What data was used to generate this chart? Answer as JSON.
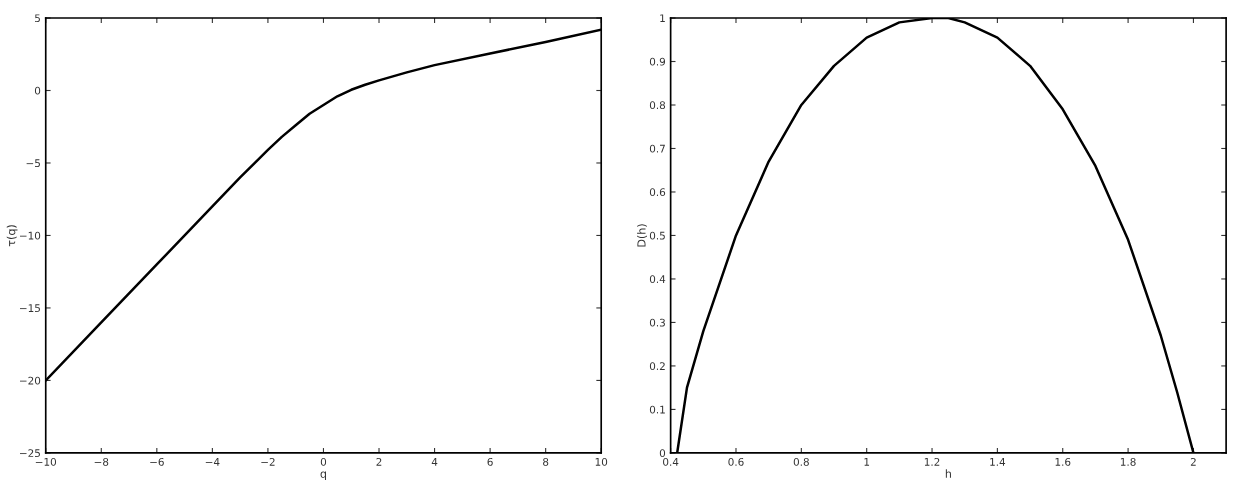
{
  "chart_data": [
    {
      "type": "line",
      "xlabel": "q",
      "ylabel": "τ(q)",
      "xlim": [
        -10,
        10
      ],
      "ylim": [
        -25,
        5
      ],
      "xticks": [
        -10,
        -8,
        -6,
        -4,
        -2,
        0,
        2,
        4,
        6,
        8,
        10
      ],
      "yticks": [
        -25,
        -20,
        -15,
        -10,
        -5,
        0,
        5
      ],
      "grid": false,
      "legend": false,
      "marker": "none",
      "line_style": "solid",
      "series": [
        {
          "color": "#000000",
          "x": [
            -10,
            -8,
            -6,
            -4,
            -3,
            -2,
            -1.5,
            -1,
            -0.5,
            0,
            0.5,
            1,
            1.5,
            2,
            3,
            4,
            6,
            8,
            10
          ],
          "values": [
            -20,
            -16,
            -12,
            -8,
            -6,
            -4.1,
            -3.2,
            -2.4,
            -1.6,
            -1.0,
            -0.4,
            0.05,
            0.4,
            0.7,
            1.25,
            1.75,
            2.55,
            3.35,
            4.2
          ]
        }
      ]
    },
    {
      "type": "line",
      "xlabel": "h",
      "ylabel": "D(h)",
      "xlim": [
        0.4,
        2.1
      ],
      "ylim": [
        0,
        1
      ],
      "xticks": [
        0.4,
        0.6,
        0.8,
        1,
        1.2,
        1.4,
        1.6,
        1.8,
        2
      ],
      "yticks": [
        0,
        0.1,
        0.2,
        0.3,
        0.4,
        0.5,
        0.6,
        0.7,
        0.8,
        0.9,
        1
      ],
      "grid": false,
      "legend": false,
      "marker": "none",
      "line_style": "solid",
      "series": [
        {
          "color": "#000000",
          "x": [
            0.42,
            0.45,
            0.5,
            0.6,
            0.7,
            0.8,
            0.9,
            1.0,
            1.1,
            1.2,
            1.25,
            1.3,
            1.4,
            1.5,
            1.6,
            1.7,
            1.8,
            1.9,
            1.95,
            2.0
          ],
          "values": [
            0,
            0.15,
            0.28,
            0.5,
            0.67,
            0.8,
            0.89,
            0.955,
            0.99,
            1.0,
            1.0,
            0.99,
            0.955,
            0.89,
            0.79,
            0.66,
            0.49,
            0.27,
            0.14,
            0
          ]
        }
      ]
    }
  ]
}
